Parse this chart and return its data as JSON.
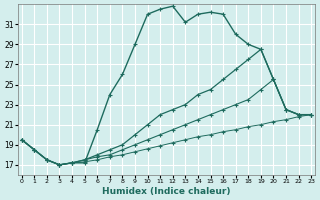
{
  "xlabel": "Humidex (Indice chaleur)",
  "bg_color": "#d4eeed",
  "grid_color": "#c0dedd",
  "line_color": "#1e6b5e",
  "x_ticks": [
    0,
    1,
    2,
    3,
    4,
    5,
    6,
    7,
    8,
    9,
    10,
    11,
    12,
    13,
    14,
    15,
    16,
    17,
    18,
    19,
    20,
    21,
    22,
    23
  ],
  "y_ticks": [
    17,
    19,
    21,
    23,
    25,
    27,
    29,
    31
  ],
  "xlim": [
    -0.3,
    23.3
  ],
  "ylim": [
    16.0,
    33.0
  ],
  "lines": [
    {
      "x": [
        0,
        1,
        2,
        3,
        4,
        5,
        6,
        7,
        8,
        9,
        10,
        11,
        12,
        13,
        14,
        15,
        16,
        17,
        18,
        19,
        20,
        21,
        22,
        23
      ],
      "y": [
        19.5,
        18.5,
        17.5,
        17.0,
        17.2,
        17.2,
        20.5,
        24.0,
        26.0,
        29.0,
        32.0,
        32.5,
        32.8,
        31.2,
        32.0,
        32.2,
        32.0,
        30.0,
        29.0,
        28.5,
        25.5,
        22.5,
        22.0,
        22.0
      ]
    },
    {
      "x": [
        0,
        1,
        2,
        3,
        4,
        5,
        6,
        7,
        8,
        9,
        10,
        11,
        12,
        13,
        14,
        15,
        16,
        17,
        18,
        19,
        20,
        21,
        22,
        23
      ],
      "y": [
        19.5,
        18.5,
        17.5,
        17.0,
        17.2,
        17.5,
        18.0,
        18.5,
        19.0,
        20.0,
        21.0,
        22.0,
        22.5,
        23.0,
        24.0,
        24.5,
        25.5,
        26.5,
        27.5,
        28.5,
        25.5,
        22.5,
        22.0,
        22.0
      ]
    },
    {
      "x": [
        0,
        1,
        2,
        3,
        4,
        5,
        6,
        7,
        8,
        9,
        10,
        11,
        12,
        13,
        14,
        15,
        16,
        17,
        18,
        19,
        20,
        21,
        22,
        23
      ],
      "y": [
        19.5,
        18.5,
        17.5,
        17.0,
        17.2,
        17.5,
        17.8,
        18.0,
        18.5,
        19.0,
        19.5,
        20.0,
        20.5,
        21.0,
        21.5,
        22.0,
        22.5,
        23.0,
        23.5,
        24.5,
        25.5,
        22.5,
        22.0,
        22.0
      ]
    },
    {
      "x": [
        0,
        1,
        2,
        3,
        4,
        5,
        6,
        7,
        8,
        9,
        10,
        11,
        12,
        13,
        14,
        15,
        16,
        17,
        18,
        19,
        20,
        21,
        22,
        23
      ],
      "y": [
        19.5,
        18.5,
        17.5,
        17.0,
        17.2,
        17.3,
        17.5,
        17.8,
        18.0,
        18.3,
        18.6,
        18.9,
        19.2,
        19.5,
        19.8,
        20.0,
        20.3,
        20.5,
        20.8,
        21.0,
        21.3,
        21.5,
        21.8,
        22.0
      ]
    }
  ]
}
